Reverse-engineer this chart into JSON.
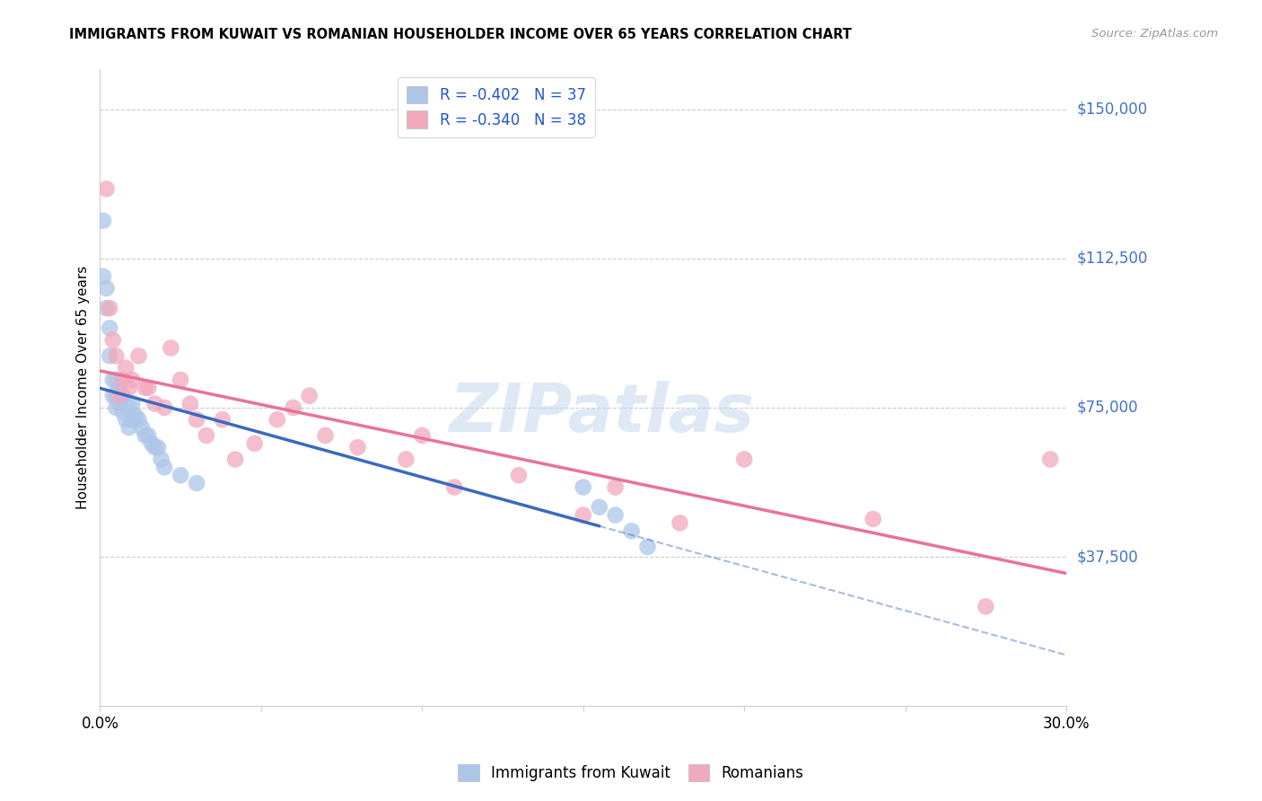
{
  "title": "IMMIGRANTS FROM KUWAIT VS ROMANIAN HOUSEHOLDER INCOME OVER 65 YEARS CORRELATION CHART",
  "source": "Source: ZipAtlas.com",
  "ylabel": "Householder Income Over 65 years",
  "yticks_labels": [
    "$150,000",
    "$112,500",
    "$75,000",
    "$37,500"
  ],
  "yticks_values": [
    150000,
    112500,
    75000,
    37500
  ],
  "xlim": [
    0.0,
    0.3
  ],
  "ylim": [
    0,
    160000
  ],
  "legend_label1": "R = -0.402   N = 37",
  "legend_label2": "R = -0.340   N = 38",
  "watermark": "ZIPatlas",
  "color_blue": "#adc6e8",
  "color_pink": "#f2a8bc",
  "color_blue_line": "#3a6abf",
  "color_pink_line": "#e8729a",
  "color_blue_dark": "#2255aa",
  "blue_line_x_end": 0.155,
  "kuwait_x": [
    0.001,
    0.001,
    0.002,
    0.002,
    0.003,
    0.003,
    0.004,
    0.004,
    0.005,
    0.005,
    0.005,
    0.006,
    0.006,
    0.007,
    0.007,
    0.008,
    0.009,
    0.009,
    0.01,
    0.01,
    0.011,
    0.012,
    0.013,
    0.014,
    0.015,
    0.016,
    0.017,
    0.018,
    0.019,
    0.02,
    0.025,
    0.03,
    0.15,
    0.155,
    0.16,
    0.165,
    0.17
  ],
  "kuwait_y": [
    122000,
    108000,
    105000,
    100000,
    95000,
    88000,
    82000,
    78000,
    82000,
    78000,
    75000,
    80000,
    76000,
    78000,
    74000,
    72000,
    75000,
    70000,
    76000,
    72000,
    73000,
    72000,
    70000,
    68000,
    68000,
    66000,
    65000,
    65000,
    62000,
    60000,
    58000,
    56000,
    55000,
    50000,
    48000,
    44000,
    40000
  ],
  "romanian_x": [
    0.002,
    0.003,
    0.004,
    0.005,
    0.006,
    0.007,
    0.008,
    0.009,
    0.01,
    0.012,
    0.014,
    0.015,
    0.017,
    0.02,
    0.022,
    0.025,
    0.028,
    0.03,
    0.033,
    0.038,
    0.042,
    0.048,
    0.055,
    0.06,
    0.065,
    0.07,
    0.08,
    0.095,
    0.1,
    0.11,
    0.13,
    0.15,
    0.16,
    0.18,
    0.2,
    0.24,
    0.275,
    0.295
  ],
  "romanian_y": [
    130000,
    100000,
    92000,
    88000,
    78000,
    82000,
    85000,
    80000,
    82000,
    88000,
    80000,
    80000,
    76000,
    75000,
    90000,
    82000,
    76000,
    72000,
    68000,
    72000,
    62000,
    66000,
    72000,
    75000,
    78000,
    68000,
    65000,
    62000,
    68000,
    55000,
    58000,
    48000,
    55000,
    46000,
    62000,
    47000,
    25000,
    62000
  ]
}
